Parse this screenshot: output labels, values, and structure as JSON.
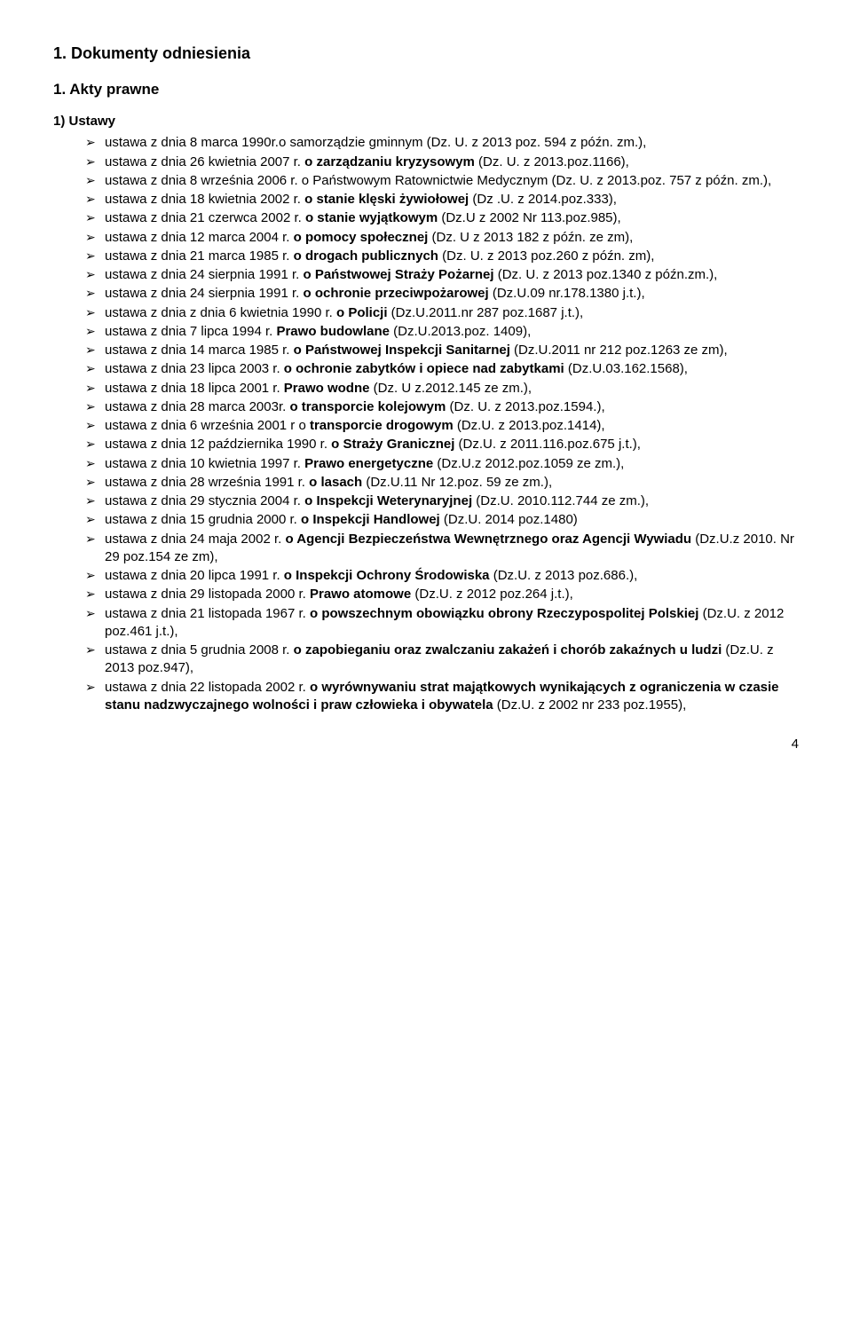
{
  "heading": "1. Dokumenty odniesienia",
  "subheading": "1. Akty prawne",
  "ordinal": "1)  Ustawy",
  "page_number": "4",
  "items": [
    "ustawa z dnia 8 marca 1990r.o samorządzie gminnym (Dz. U. z  2013 poz. 594 z późn. zm.),",
    "ustawa z dnia 26 kwietnia 2007 r. <b>o zarządzaniu kryzysowym</b> (Dz. U. z  2013.poz.1166),",
    "ustawa z dnia 8 września 2006 r. o Państwowym Ratownictwie Medycznym (Dz. U. z 2013.poz. 757 z późn. zm.),",
    "ustawa z dnia 18 kwietnia 2002 r. <b>o stanie klęski żywiołowej</b> (Dz .U. z 2014.poz.333),",
    "ustawa z dnia 21 czerwca 2002 r. <b>o stanie wyjątkowym</b> (Dz.U z 2002 Nr 113.poz.985),",
    "ustawa  z dnia 12 marca 2004 r. <b>o pomocy społecznej</b> (Dz. U z 2013 182 z późn. ze zm),",
    "ustawa z dnia 21 marca 1985 r. <b>o drogach publicznych</b> (Dz. U. z 2013 poz.260  z późn. zm),",
    "ustawa z dnia 24 sierpnia 1991 r. <b>o Państwowej Straży Pożarnej</b> (Dz. U. z 2013 poz.1340 z późn.zm.),",
    "ustawa z dnia 24 sierpnia 1991 r. <b>o ochronie przeciwpożarowej</b> (Dz.U.09 nr.178.1380 j.t.),",
    "ustawa z dnia z dnia 6 kwietnia 1990 r. <b>o Policji</b> (Dz.U.2011.nr 287 poz.1687 j.t.),",
    "ustawa z dnia 7 lipca 1994 r. <b>Prawo budowlane</b> (Dz.U.2013.poz. 1409),",
    "ustawa z dnia 14 marca 1985 r. <b>o Państwowej Inspekcji Sanitarnej</b> (Dz.U.2011 nr 212 poz.1263 ze zm),",
    "ustawa z dnia 23 lipca 2003 r. <b>o ochronie zabytków i opiece nad zabytkami</b> (Dz.U.03.162.1568),",
    "ustawa z dnia 18 lipca 2001 r. <b>Prawo wodne</b> (Dz. U z.2012.145 ze zm.),",
    "ustawa z dnia 28 marca 2003r. <b>o transporcie kolejowym</b> (Dz. U. z 2013.poz.1594.),",
    "ustawa z dnia 6 września 2001 r o <b>transporcie drogowym</b> (Dz.U. z 2013.poz.1414),",
    "ustawa z dnia 12 października 1990 r. <b>o Straży Granicznej</b> (Dz.U. z 2011.116.poz.675 j.t.),",
    "ustawa z dnia 10 kwietnia 1997 r. <b>Prawo energetyczne</b> (Dz.U.z 2012.poz.1059 ze zm.),",
    "ustawa z dnia 28 września 1991 r. <b>o lasach</b> (Dz.U.11 Nr 12.poz. 59 ze zm.),",
    "ustawa z dnia 29 stycznia 2004 r. <b>o Inspekcji Weterynaryjnej</b>  (Dz.U. 2010.112.744 ze zm.),",
    "ustawa z dnia 15 grudnia 2000 r. <b>o Inspekcji Handlowej</b> (Dz.U. 2014 poz.1480)",
    "ustawa z dnia 24 maja 2002 r. <b>o Agencji Bezpieczeństwa Wewnętrznego oraz Agencji Wywiadu</b> (Dz.U.z 2010. Nr 29 poz.154 ze zm),",
    "ustawa z dnia 20 lipca 1991 r. <b>o Inspekcji Ochrony Środowiska</b>  (Dz.U. z 2013 poz.686.),",
    "ustawa z dnia 29 listopada 2000 r. <b>Prawo atomowe</b> (Dz.U. z 2012 poz.264 j.t.),",
    "ustawa z dnia 21 listopada 1967 r. <b>o powszechnym obowiązku obrony Rzeczypospolitej Polskiej</b> (Dz.U. z 2012 poz.461 j.t.),",
    "ustawa z dnia 5 grudnia 2008 r. <b>o zapobieganiu oraz zwalczaniu zakażeń i chorób zakaźnych u ludzi</b> (Dz.U. z 2013 poz.947),",
    "ustawa z dnia 22 listopada 2002 r. <b>o wyrównywaniu strat majątkowych wynikających z ograniczenia w czasie stanu nadzwyczajnego wolności i praw człowieka i obywatela</b> (Dz.U. z 2002 nr 233 poz.1955),"
  ]
}
